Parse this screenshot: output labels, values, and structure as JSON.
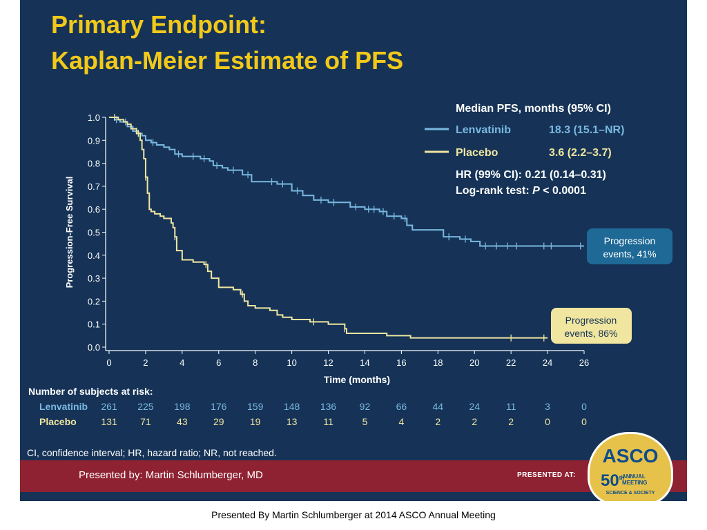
{
  "slide": {
    "title_line1": "Primary Endpoint:",
    "title_line2": "Kaplan-Meier Estimate of PFS",
    "footnote": "CI, confidence interval; HR, hazard ratio; NR, not reached.",
    "presenter": "Presented by: Martin Schlumberger, MD",
    "presented_at": "PRESENTED AT:",
    "asco": {
      "name": "ASCO",
      "number": "50",
      "th": "th",
      "annual": "ANNUAL",
      "meeting": "MEETING",
      "sub": "SCIENCE & SOCIETY"
    }
  },
  "caption": "Presented By Martin Schlumberger at 2014 ASCO Annual Meeting",
  "colors": {
    "background": "#163357",
    "title": "#f2c91a",
    "lenvatinib": "#7ab8e0",
    "placebo": "#f0e6a0",
    "band": "#8e2232",
    "callout_blue": "#1e6996",
    "callout_yellow": "#f0e6a0"
  },
  "chart_data": {
    "type": "line",
    "xlabel": "Time (months)",
    "ylabel": "Progression-Free Survival",
    "xlim": [
      0,
      26
    ],
    "ylim": [
      0,
      1.0
    ],
    "x_ticks": [
      "0",
      "2",
      "4",
      "6",
      "8",
      "10",
      "12",
      "14",
      "16",
      "18",
      "20",
      "22",
      "24",
      "26"
    ],
    "y_ticks": [
      "0.0",
      "0.1",
      "0.2",
      "0.3",
      "0.4",
      "0.5",
      "0.6",
      "0.7",
      "0.8",
      "0.9",
      "1.0"
    ],
    "legend": {
      "header": "Median PFS, months (95% CI)",
      "hr_text": "HR (99% CI): 0.21 (0.14–0.31)",
      "logrank_prefix": "Log-rank test: ",
      "logrank_p": "P",
      "logrank_suffix": " < 0.0001"
    },
    "series": [
      {
        "name": "Lenvatinib",
        "median_text": "18.3 (15.1–NR)",
        "color": "#7ab8e0",
        "x": [
          0,
          0.3,
          0.6,
          1.0,
          1.3,
          1.6,
          1.8,
          2.0,
          2.3,
          2.6,
          3.0,
          3.3,
          3.6,
          4.0,
          4.5,
          5.0,
          5.5,
          5.7,
          6.2,
          6.5,
          7.0,
          7.3,
          7.8,
          8.5,
          9.2,
          10.0,
          10.6,
          11.2,
          12.0,
          12.6,
          13.2,
          14.0,
          14.8,
          15.2,
          16.0,
          16.3,
          16.6,
          17.5,
          18.3,
          19.2,
          19.8,
          20.3,
          26
        ],
        "y": [
          1.0,
          0.99,
          0.98,
          0.96,
          0.94,
          0.93,
          0.92,
          0.9,
          0.89,
          0.88,
          0.87,
          0.86,
          0.84,
          0.83,
          0.83,
          0.82,
          0.81,
          0.79,
          0.78,
          0.77,
          0.77,
          0.75,
          0.72,
          0.72,
          0.71,
          0.68,
          0.66,
          0.64,
          0.63,
          0.63,
          0.61,
          0.6,
          0.59,
          0.57,
          0.56,
          0.53,
          0.51,
          0.51,
          0.48,
          0.47,
          0.46,
          0.44,
          0.44
        ],
        "censor_x": [
          0.4,
          0.9,
          1.5,
          2.4,
          3.8,
          4.6,
          5.2,
          5.9,
          6.8,
          7.6,
          8.9,
          9.5,
          10.3,
          11.6,
          12.3,
          13.5,
          14.2,
          14.5,
          15.0,
          15.6,
          16.2,
          18.6,
          19.5,
          20.6,
          21.2,
          21.8,
          22.3,
          23.8,
          24.2,
          25.8
        ],
        "at_risk": [
          "261",
          "225",
          "198",
          "176",
          "159",
          "148",
          "136",
          "92",
          "66",
          "44",
          "24",
          "11",
          "3",
          "0"
        ],
        "callout": [
          "Progression",
          "events, 41%"
        ]
      },
      {
        "name": "Placebo",
        "median_text": "3.6 (2.2–3.7)",
        "color": "#f0e6a0",
        "x": [
          0,
          0.5,
          0.8,
          1.0,
          1.2,
          1.5,
          1.7,
          1.8,
          1.9,
          2.0,
          2.1,
          2.2,
          2.3,
          2.5,
          2.8,
          3.0,
          3.4,
          3.5,
          3.6,
          3.7,
          4.0,
          4.6,
          5.2,
          5.4,
          5.6,
          6.0,
          6.8,
          7.2,
          7.4,
          7.6,
          8.0,
          8.8,
          9.2,
          9.5,
          10.0,
          11.0,
          12.0,
          12.9,
          13.0,
          15.2,
          15.6,
          16.5,
          18.0,
          24.0
        ],
        "y": [
          1.0,
          0.99,
          0.98,
          0.97,
          0.95,
          0.93,
          0.9,
          0.86,
          0.82,
          0.74,
          0.67,
          0.6,
          0.59,
          0.58,
          0.57,
          0.56,
          0.54,
          0.52,
          0.48,
          0.42,
          0.38,
          0.37,
          0.36,
          0.33,
          0.3,
          0.26,
          0.25,
          0.23,
          0.2,
          0.18,
          0.17,
          0.16,
          0.14,
          0.13,
          0.12,
          0.11,
          0.1,
          0.08,
          0.06,
          0.05,
          0.05,
          0.04,
          0.04,
          0.04
        ],
        "censor_x": [
          0.3,
          1.6,
          2.0,
          3.6,
          5.3,
          7.3,
          11.2,
          12.9,
          22.0,
          23.8
        ],
        "at_risk": [
          "131",
          "71",
          "43",
          "29",
          "19",
          "13",
          "11",
          "5",
          "4",
          "2",
          "2",
          "2",
          "0",
          "0"
        ],
        "callout": [
          "Progression",
          "events, 86%"
        ]
      }
    ],
    "at_risk_header": "Number of subjects at risk:"
  }
}
